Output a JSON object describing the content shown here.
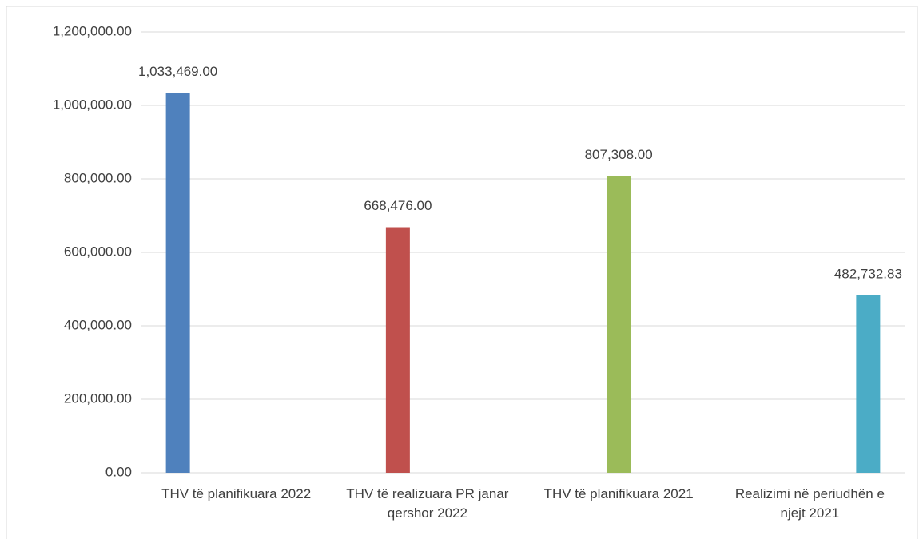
{
  "chart_data": {
    "type": "bar",
    "categories": [
      "THV të planifikuara 2022",
      "THV të realizuara PR janar qershor 2022",
      "THV të planifikuara 2021",
      "Realizimi në periudhën e njejt 2021"
    ],
    "values": [
      1033469,
      668476,
      807308,
      482732.83
    ],
    "value_labels": [
      "1,033,469.00",
      "668,476.00",
      "807,308.00",
      "482,732.83"
    ],
    "colors": [
      "#4f81bd",
      "#c0504d",
      "#9bbb59",
      "#4bacc6"
    ],
    "ylim": [
      0,
      1200000
    ],
    "yticks": [
      {
        "value": 0,
        "label": "0.00"
      },
      {
        "value": 200000,
        "label": "200,000.00"
      },
      {
        "value": 400000,
        "label": "400,000.00"
      },
      {
        "value": 600000,
        "label": "600,000.00"
      },
      {
        "value": 800000,
        "label": "800,000.00"
      },
      {
        "value": 1000000,
        "label": "1,000,000.00"
      },
      {
        "value": 1200000,
        "label": "1,200,000.00"
      }
    ],
    "grid": true
  }
}
